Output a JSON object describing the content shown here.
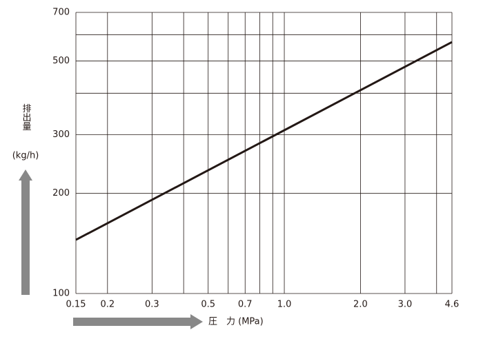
{
  "chart_data": {
    "type": "line",
    "y_label": "排出量",
    "y_unit": "(kg/h)",
    "x_label": "圧　力 (MPa)",
    "x": [
      0.15,
      4.6
    ],
    "series": [
      {
        "color": "#231815",
        "values": [
          145,
          570
        ]
      }
    ],
    "log_x": true,
    "log_y": true,
    "grid": true,
    "xlim": [
      0.15,
      4.6
    ],
    "xticks": [
      0.15,
      0.2,
      0.3,
      0.5,
      0.7,
      {
        "value": 1,
        "label": "1.0"
      },
      {
        "value": 2,
        "label": "2.0"
      },
      {
        "value": 3,
        "label": "3.0"
      },
      4.6
    ],
    "x_minor_grid": [
      0.4,
      0.6,
      0.8,
      0.9,
      4
    ],
    "ylim": [
      100,
      700
    ],
    "yticks": [
      100,
      200,
      300,
      500,
      700
    ],
    "y_minor_grid": [
      400,
      600
    ]
  }
}
